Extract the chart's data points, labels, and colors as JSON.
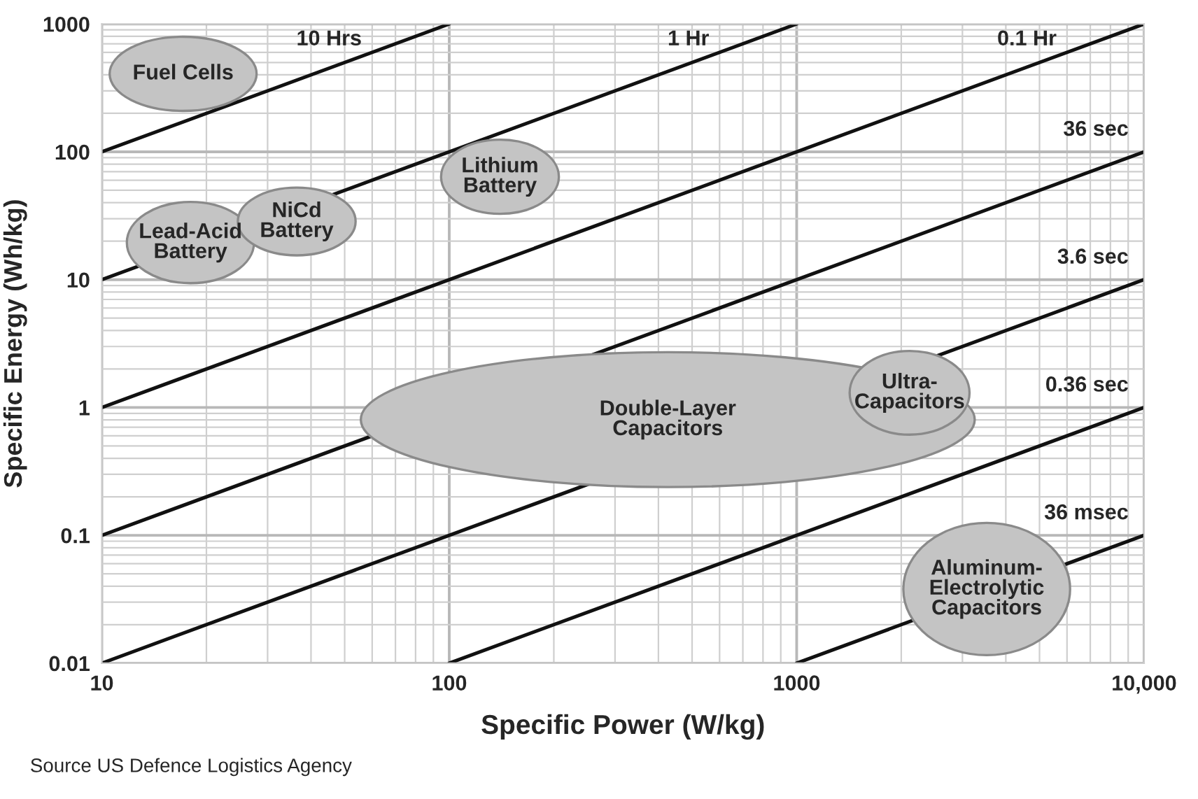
{
  "chart_data": {
    "type": "line",
    "xlabel": "Specific Power (W/kg)",
    "ylabel": "Specific Energy (Wh/kg)",
    "log": "xy",
    "grid": true,
    "legend": false,
    "marker": "none",
    "line_style": "solid",
    "xlim": [
      10,
      10000
    ],
    "ylim": [
      0.01,
      1000
    ],
    "xticks": [
      10,
      100,
      1000,
      {
        "value": 10000,
        "label": "10,000"
      }
    ],
    "yticks": [
      0.01,
      0.1,
      1,
      10,
      100,
      1000
    ],
    "series": [
      {
        "name": "10 Hrs",
        "color": "#111111",
        "x": [
          10,
          100
        ],
        "values": [
          100,
          1000
        ]
      },
      {
        "name": "1 Hr",
        "color": "#111111",
        "x": [
          10,
          1000
        ],
        "values": [
          10,
          1000
        ]
      },
      {
        "name": "0.1 Hr",
        "color": "#111111",
        "x": [
          10,
          10000
        ],
        "values": [
          1,
          1000
        ]
      },
      {
        "name": "36 sec",
        "color": "#111111",
        "x": [
          10,
          10000
        ],
        "values": [
          0.1,
          100
        ]
      },
      {
        "name": "3.6 sec",
        "color": "#111111",
        "x": [
          10,
          10000
        ],
        "values": [
          0.01,
          10
        ]
      },
      {
        "name": "0.36 sec",
        "color": "#111111",
        "x": [
          100,
          10000
        ],
        "values": [
          0.01,
          1
        ]
      },
      {
        "name": "36 msec",
        "color": "#111111",
        "x": [
          1000,
          10000
        ],
        "values": [
          0.01,
          0.1
        ]
      }
    ],
    "annotations": [
      "Fuel Cells",
      "Lead-Acid\nBattery",
      "NiCd\nBattery",
      "Lithium\nBattery",
      "Double-Layer\nCapacitors",
      "Ultra-\nCapacitors",
      "Aluminum-\nElectrolytic\nCapacitors",
      "Source US Defence Logistics Agency"
    ]
  }
}
